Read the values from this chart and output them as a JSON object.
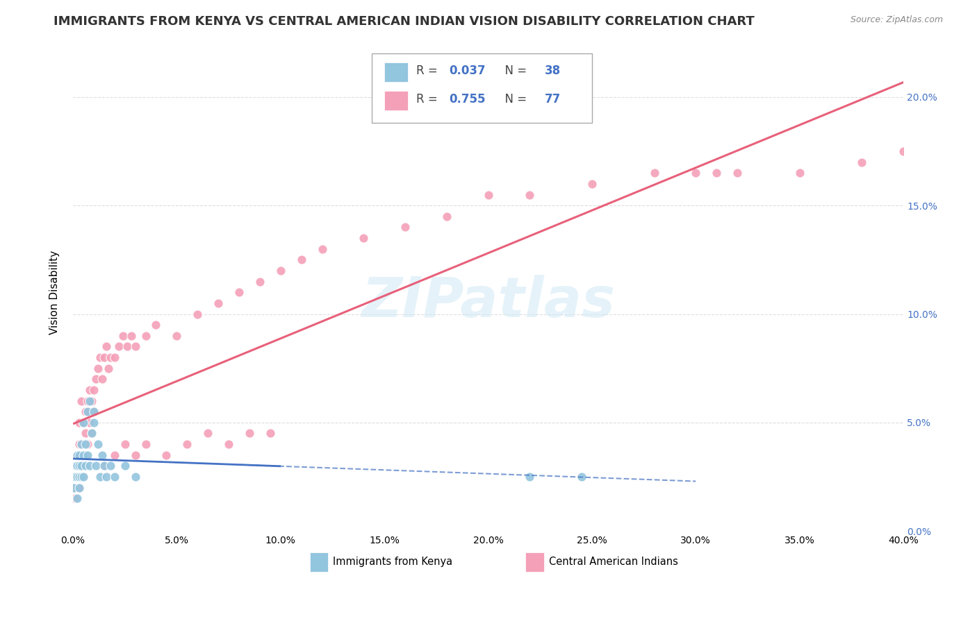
{
  "title": "IMMIGRANTS FROM KENYA VS CENTRAL AMERICAN INDIAN VISION DISABILITY CORRELATION CHART",
  "source": "Source: ZipAtlas.com",
  "ylabel": "Vision Disability",
  "watermark": "ZIPatlas",
  "kenya_color": "#92c5de",
  "kenya_line_color": "#4472c4",
  "cam_color": "#f4a0b8",
  "cam_line_color": "#e8607a",
  "kenya_R": "0.037",
  "kenya_N": "38",
  "cam_R": "0.755",
  "cam_N": "77",
  "kenya_x": [
    0.0005,
    0.001,
    0.0015,
    0.002,
    0.002,
    0.002,
    0.002,
    0.003,
    0.003,
    0.003,
    0.003,
    0.004,
    0.004,
    0.004,
    0.005,
    0.005,
    0.005,
    0.006,
    0.006,
    0.007,
    0.007,
    0.008,
    0.008,
    0.009,
    0.01,
    0.01,
    0.011,
    0.012,
    0.013,
    0.014,
    0.015,
    0.016,
    0.018,
    0.02,
    0.025,
    0.03,
    0.22,
    0.245
  ],
  "kenya_y": [
    0.02,
    0.025,
    0.03,
    0.015,
    0.025,
    0.03,
    0.035,
    0.02,
    0.025,
    0.03,
    0.035,
    0.025,
    0.03,
    0.04,
    0.025,
    0.035,
    0.05,
    0.03,
    0.04,
    0.035,
    0.055,
    0.03,
    0.06,
    0.045,
    0.05,
    0.055,
    0.03,
    0.04,
    0.025,
    0.035,
    0.03,
    0.025,
    0.03,
    0.025,
    0.03,
    0.025,
    0.025,
    0.025
  ],
  "cam_x": [
    0.0005,
    0.001,
    0.001,
    0.001,
    0.002,
    0.002,
    0.002,
    0.002,
    0.003,
    0.003,
    0.003,
    0.003,
    0.004,
    0.004,
    0.004,
    0.005,
    0.005,
    0.005,
    0.006,
    0.006,
    0.006,
    0.007,
    0.007,
    0.008,
    0.008,
    0.009,
    0.009,
    0.01,
    0.01,
    0.011,
    0.012,
    0.013,
    0.014,
    0.015,
    0.016,
    0.017,
    0.018,
    0.02,
    0.022,
    0.024,
    0.026,
    0.028,
    0.03,
    0.035,
    0.04,
    0.05,
    0.06,
    0.07,
    0.08,
    0.09,
    0.1,
    0.11,
    0.12,
    0.14,
    0.16,
    0.18,
    0.2,
    0.22,
    0.25,
    0.28,
    0.3,
    0.31,
    0.32,
    0.35,
    0.38,
    0.4,
    0.015,
    0.02,
    0.025,
    0.03,
    0.035,
    0.045,
    0.055,
    0.065,
    0.075,
    0.085,
    0.095
  ],
  "cam_y": [
    0.02,
    0.015,
    0.02,
    0.025,
    0.02,
    0.025,
    0.03,
    0.035,
    0.02,
    0.03,
    0.04,
    0.05,
    0.03,
    0.04,
    0.06,
    0.025,
    0.035,
    0.05,
    0.035,
    0.045,
    0.055,
    0.04,
    0.06,
    0.05,
    0.065,
    0.045,
    0.06,
    0.055,
    0.065,
    0.07,
    0.075,
    0.08,
    0.07,
    0.08,
    0.085,
    0.075,
    0.08,
    0.08,
    0.085,
    0.09,
    0.085,
    0.09,
    0.085,
    0.09,
    0.095,
    0.09,
    0.1,
    0.105,
    0.11,
    0.115,
    0.12,
    0.125,
    0.13,
    0.135,
    0.14,
    0.145,
    0.155,
    0.155,
    0.16,
    0.165,
    0.165,
    0.165,
    0.165,
    0.165,
    0.17,
    0.175,
    0.03,
    0.035,
    0.04,
    0.035,
    0.04,
    0.035,
    0.04,
    0.045,
    0.04,
    0.045,
    0.045
  ],
  "xlim": [
    0,
    0.4
  ],
  "ylim": [
    0.0,
    0.22
  ],
  "x_ticks": [
    0.0,
    0.05,
    0.1,
    0.15,
    0.2,
    0.25,
    0.3,
    0.35,
    0.4
  ],
  "y_ticks": [
    0.0,
    0.05,
    0.1,
    0.15,
    0.2
  ],
  "background_color": "#ffffff",
  "grid_color": "#dddddd",
  "title_fontsize": 13,
  "axis_label_fontsize": 11,
  "tick_fontsize": 10,
  "right_tick_color": "#4472c4"
}
